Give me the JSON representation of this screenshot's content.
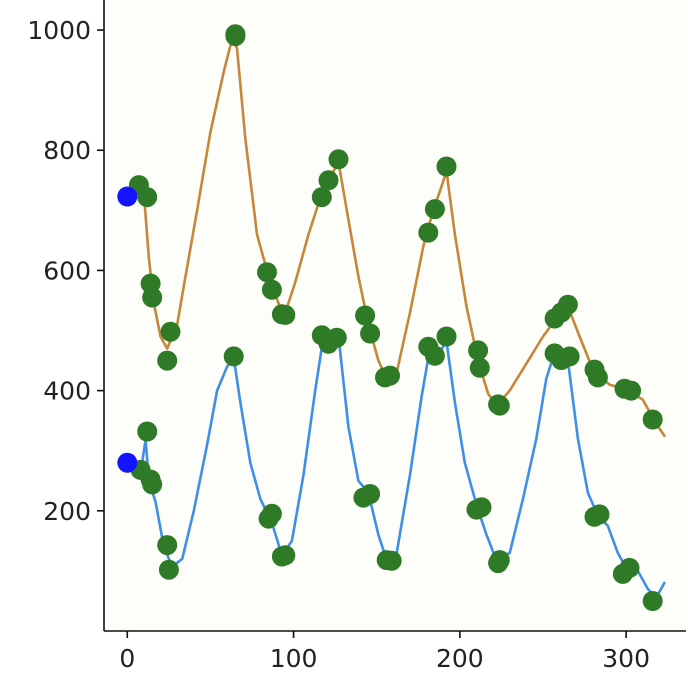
{
  "chart_data": {
    "type": "line",
    "title": "",
    "xlabel": "",
    "ylabel": "",
    "xlim": [
      -14,
      336
    ],
    "ylim": [
      0,
      1050
    ],
    "xticks": [
      0,
      100,
      200,
      300
    ],
    "yticks": [
      200,
      400,
      600,
      800,
      1000
    ],
    "grid": false,
    "colors": {
      "background": "#fdfdf9",
      "upper_line": "#c6873a",
      "lower_line": "#3f8fe8",
      "markers": "#2e7a27",
      "start_markers": "#1414ff"
    },
    "series": [
      {
        "line_color": "#c6873a",
        "line": [
          {
            "x": 6,
            "y": 745
          },
          {
            "x": 10,
            "y": 728
          },
          {
            "x": 13,
            "y": 620
          },
          {
            "x": 16,
            "y": 545
          },
          {
            "x": 20,
            "y": 490
          },
          {
            "x": 24,
            "y": 470
          },
          {
            "x": 30,
            "y": 510
          },
          {
            "x": 35,
            "y": 590
          },
          {
            "x": 42,
            "y": 700
          },
          {
            "x": 50,
            "y": 830
          },
          {
            "x": 58,
            "y": 930
          },
          {
            "x": 63,
            "y": 985
          },
          {
            "x": 66,
            "y": 970
          },
          {
            "x": 71,
            "y": 820
          },
          {
            "x": 78,
            "y": 660
          },
          {
            "x": 85,
            "y": 590
          },
          {
            "x": 91,
            "y": 545
          },
          {
            "x": 95,
            "y": 530
          },
          {
            "x": 101,
            "y": 580
          },
          {
            "x": 109,
            "y": 660
          },
          {
            "x": 116,
            "y": 720
          },
          {
            "x": 122,
            "y": 755
          },
          {
            "x": 127,
            "y": 780
          },
          {
            "x": 132,
            "y": 700
          },
          {
            "x": 139,
            "y": 590
          },
          {
            "x": 145,
            "y": 510
          },
          {
            "x": 151,
            "y": 450
          },
          {
            "x": 156,
            "y": 420
          },
          {
            "x": 162,
            "y": 430
          },
          {
            "x": 170,
            "y": 530
          },
          {
            "x": 178,
            "y": 640
          },
          {
            "x": 184,
            "y": 700
          },
          {
            "x": 189,
            "y": 740
          },
          {
            "x": 192,
            "y": 765
          },
          {
            "x": 197,
            "y": 660
          },
          {
            "x": 204,
            "y": 540
          },
          {
            "x": 211,
            "y": 450
          },
          {
            "x": 217,
            "y": 395
          },
          {
            "x": 222,
            "y": 375
          },
          {
            "x": 230,
            "y": 400
          },
          {
            "x": 240,
            "y": 445
          },
          {
            "x": 250,
            "y": 490
          },
          {
            "x": 258,
            "y": 520
          },
          {
            "x": 265,
            "y": 540
          },
          {
            "x": 272,
            "y": 490
          },
          {
            "x": 280,
            "y": 435
          },
          {
            "x": 290,
            "y": 410
          },
          {
            "x": 300,
            "y": 402
          },
          {
            "x": 310,
            "y": 385
          },
          {
            "x": 318,
            "y": 345
          },
          {
            "x": 323,
            "y": 325
          }
        ],
        "points": [
          {
            "x": 7,
            "y": 742
          },
          {
            "x": 12,
            "y": 722
          },
          {
            "x": 14,
            "y": 578
          },
          {
            "x": 15,
            "y": 555
          },
          {
            "x": 24,
            "y": 450
          },
          {
            "x": 26,
            "y": 498
          },
          {
            "x": 65,
            "y": 993
          },
          {
            "x": 65,
            "y": 990
          },
          {
            "x": 84,
            "y": 597
          },
          {
            "x": 87,
            "y": 568
          },
          {
            "x": 93,
            "y": 527
          },
          {
            "x": 95,
            "y": 526
          },
          {
            "x": 117,
            "y": 722
          },
          {
            "x": 121,
            "y": 750
          },
          {
            "x": 127,
            "y": 785
          },
          {
            "x": 143,
            "y": 525
          },
          {
            "x": 146,
            "y": 495
          },
          {
            "x": 155,
            "y": 422
          },
          {
            "x": 158,
            "y": 425
          },
          {
            "x": 181,
            "y": 663
          },
          {
            "x": 185,
            "y": 702
          },
          {
            "x": 192,
            "y": 773
          },
          {
            "x": 211,
            "y": 467
          },
          {
            "x": 212,
            "y": 438
          },
          {
            "x": 223,
            "y": 377
          },
          {
            "x": 224,
            "y": 375
          },
          {
            "x": 257,
            "y": 520
          },
          {
            "x": 261,
            "y": 530
          },
          {
            "x": 265,
            "y": 543
          },
          {
            "x": 281,
            "y": 435
          },
          {
            "x": 283,
            "y": 422
          },
          {
            "x": 299,
            "y": 403
          },
          {
            "x": 303,
            "y": 400
          },
          {
            "x": 316,
            "y": 352
          }
        ],
        "start_point": {
          "x": 0,
          "y": 723
        }
      },
      {
        "line_color": "#3f8fe8",
        "line": [
          {
            "x": 4,
            "y": 270
          },
          {
            "x": 8,
            "y": 265
          },
          {
            "x": 11,
            "y": 318
          },
          {
            "x": 13,
            "y": 250
          },
          {
            "x": 17,
            "y": 215
          },
          {
            "x": 22,
            "y": 140
          },
          {
            "x": 27,
            "y": 107
          },
          {
            "x": 33,
            "y": 120
          },
          {
            "x": 40,
            "y": 200
          },
          {
            "x": 48,
            "y": 310
          },
          {
            "x": 54,
            "y": 400
          },
          {
            "x": 60,
            "y": 440
          },
          {
            "x": 64,
            "y": 455
          },
          {
            "x": 68,
            "y": 380
          },
          {
            "x": 74,
            "y": 280
          },
          {
            "x": 80,
            "y": 220
          },
          {
            "x": 87,
            "y": 180
          },
          {
            "x": 93,
            "y": 126
          },
          {
            "x": 99,
            "y": 150
          },
          {
            "x": 106,
            "y": 260
          },
          {
            "x": 113,
            "y": 400
          },
          {
            "x": 118,
            "y": 490
          },
          {
            "x": 122,
            "y": 488
          },
          {
            "x": 127,
            "y": 490
          },
          {
            "x": 133,
            "y": 340
          },
          {
            "x": 139,
            "y": 250
          },
          {
            "x": 145,
            "y": 230
          },
          {
            "x": 151,
            "y": 160
          },
          {
            "x": 156,
            "y": 118
          },
          {
            "x": 162,
            "y": 130
          },
          {
            "x": 170,
            "y": 260
          },
          {
            "x": 177,
            "y": 390
          },
          {
            "x": 182,
            "y": 470
          },
          {
            "x": 187,
            "y": 460
          },
          {
            "x": 192,
            "y": 482
          },
          {
            "x": 197,
            "y": 380
          },
          {
            "x": 203,
            "y": 280
          },
          {
            "x": 210,
            "y": 210
          },
          {
            "x": 216,
            "y": 160
          },
          {
            "x": 222,
            "y": 118
          },
          {
            "x": 230,
            "y": 130
          },
          {
            "x": 238,
            "y": 220
          },
          {
            "x": 246,
            "y": 320
          },
          {
            "x": 252,
            "y": 420
          },
          {
            "x": 256,
            "y": 455
          },
          {
            "x": 260,
            "y": 448
          },
          {
            "x": 265,
            "y": 450
          },
          {
            "x": 271,
            "y": 320
          },
          {
            "x": 277,
            "y": 230
          },
          {
            "x": 283,
            "y": 192
          },
          {
            "x": 289,
            "y": 175
          },
          {
            "x": 295,
            "y": 130
          },
          {
            "x": 301,
            "y": 100
          },
          {
            "x": 307,
            "y": 100
          },
          {
            "x": 313,
            "y": 70
          },
          {
            "x": 318,
            "y": 55
          },
          {
            "x": 323,
            "y": 80
          }
        ],
        "points": [
          {
            "x": 8,
            "y": 268
          },
          {
            "x": 12,
            "y": 332
          },
          {
            "x": 14,
            "y": 252
          },
          {
            "x": 15,
            "y": 244
          },
          {
            "x": 24,
            "y": 143
          },
          {
            "x": 25,
            "y": 102
          },
          {
            "x": 64,
            "y": 457
          },
          {
            "x": 85,
            "y": 187
          },
          {
            "x": 87,
            "y": 195
          },
          {
            "x": 93,
            "y": 124
          },
          {
            "x": 95,
            "y": 126
          },
          {
            "x": 117,
            "y": 492
          },
          {
            "x": 121,
            "y": 478
          },
          {
            "x": 126,
            "y": 488
          },
          {
            "x": 142,
            "y": 222
          },
          {
            "x": 146,
            "y": 228
          },
          {
            "x": 156,
            "y": 118
          },
          {
            "x": 159,
            "y": 117
          },
          {
            "x": 181,
            "y": 473
          },
          {
            "x": 185,
            "y": 458
          },
          {
            "x": 192,
            "y": 490
          },
          {
            "x": 210,
            "y": 202
          },
          {
            "x": 213,
            "y": 206
          },
          {
            "x": 223,
            "y": 113
          },
          {
            "x": 224,
            "y": 118
          },
          {
            "x": 257,
            "y": 462
          },
          {
            "x": 261,
            "y": 451
          },
          {
            "x": 266,
            "y": 457
          },
          {
            "x": 281,
            "y": 190
          },
          {
            "x": 284,
            "y": 194
          },
          {
            "x": 298,
            "y": 95
          },
          {
            "x": 302,
            "y": 105
          },
          {
            "x": 316,
            "y": 50
          }
        ],
        "start_point": {
          "x": 0,
          "y": 280
        }
      }
    ]
  }
}
